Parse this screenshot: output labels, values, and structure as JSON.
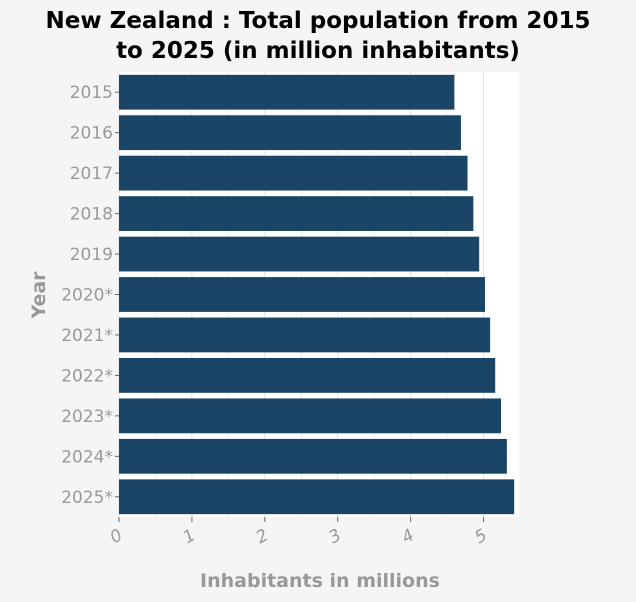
{
  "chart_data": {
    "type": "bar",
    "orientation": "horizontal",
    "title": "New Zealand : Total population from 2015\nto 2025 (in million inhabitants)",
    "xlabel": "Inhabitants in millions",
    "ylabel": "Year",
    "categories": [
      "2015",
      "2016",
      "2017",
      "2018",
      "2019",
      "2020*",
      "2021*",
      "2022*",
      "2023*",
      "2024*",
      "2025*"
    ],
    "values": [
      4.6,
      4.69,
      4.78,
      4.86,
      4.94,
      5.02,
      5.09,
      5.16,
      5.24,
      5.32,
      5.42
    ],
    "xlim": [
      0,
      5.5
    ],
    "xticks": [
      "0",
      "1",
      "2",
      "3",
      "4",
      "5"
    ],
    "grid": true,
    "colors": {
      "bar": "#1a4566",
      "background": "#f5f5f5",
      "plot_background": "#ffffff",
      "grid": "#e3e3e3",
      "tick_label": "#999999",
      "axis_label": "#999999"
    }
  }
}
